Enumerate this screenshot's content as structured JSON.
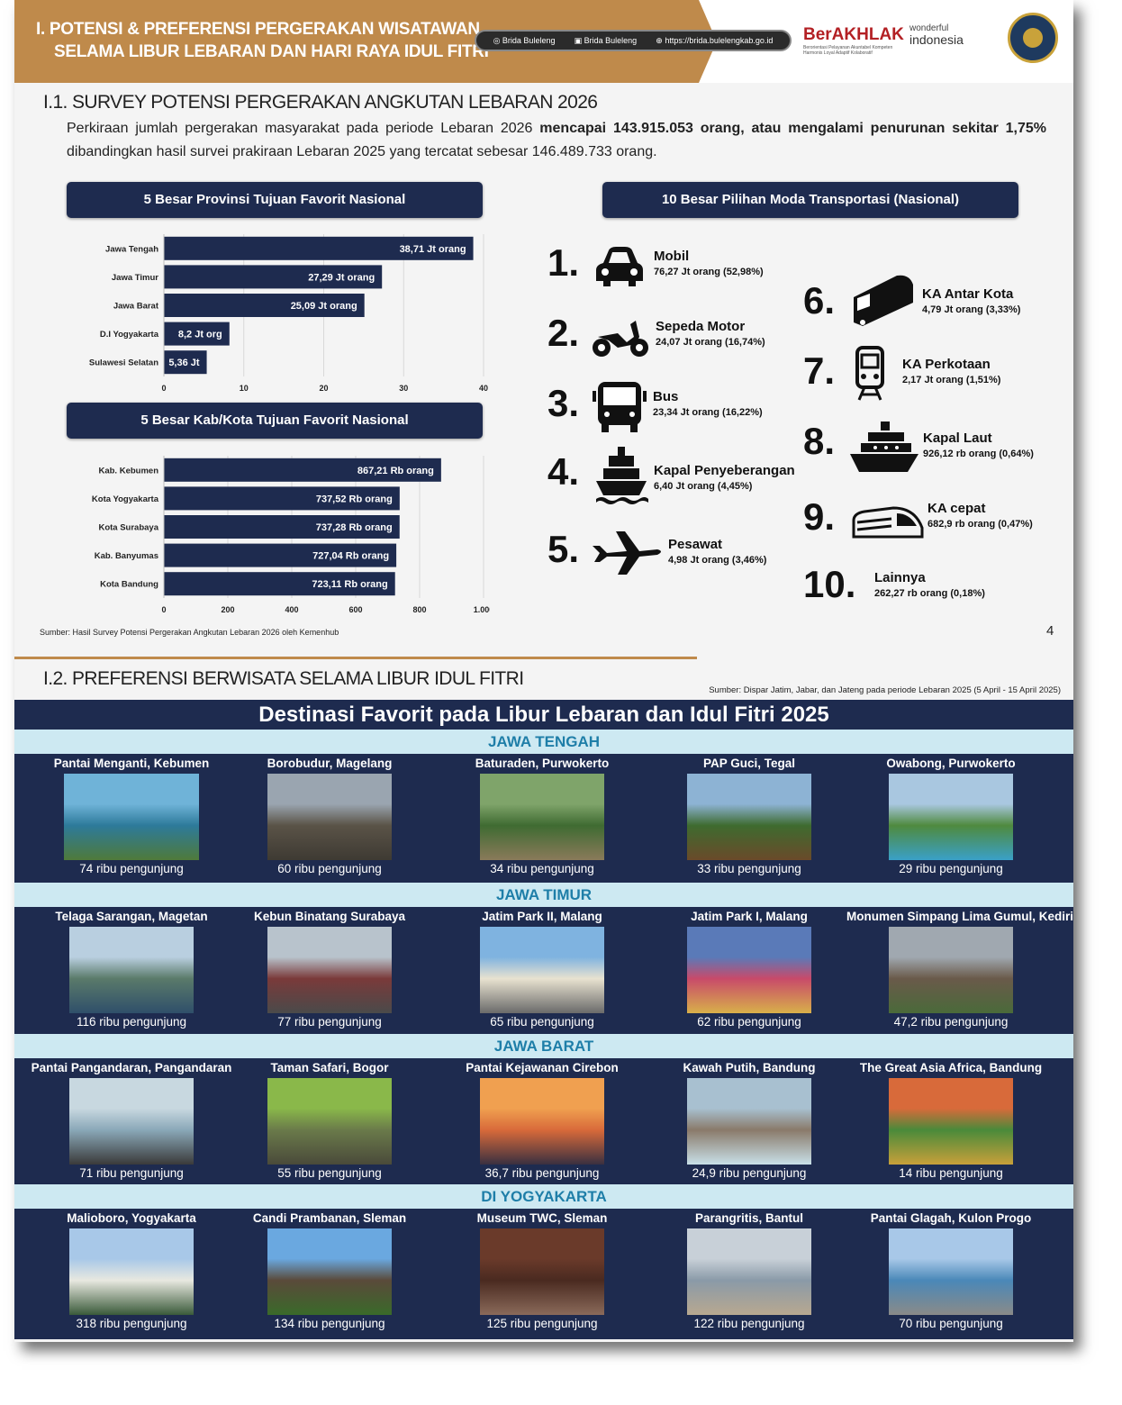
{
  "header": {
    "title_line1": "I.  POTENSI & PREFERENSI PERGERAKAN WISATAWAN",
    "title_line2": "SELAMA  LIBUR LEBARAN DAN  HARI RAYA IDUL FITRI",
    "social": [
      "Brida Buleleng",
      "Brida Buleleng",
      "https://brida.bulelengkab.go.id"
    ],
    "berakhlak": "BerAKHLAK",
    "berakhlak_tagline": "Berorientasi Pelayanan Akuntabel Kompeten Harmonis Loyal Adaptif Kolaboratif",
    "wonderful_top": "wonderful",
    "wonderful_bottom": "indonesia"
  },
  "section1": {
    "heading": "I.1. SURVEY POTENSI PERGERAKAN ANGKUTAN LEBARAN 2026",
    "intro_p1": "Perkiraan jumlah pergerakan masyarakat pada periode Lebaran 2026 ",
    "intro_b1": "mencapai 143.915.053 orang, atau mengalami penurunan sekitar 1,75%",
    "intro_p2": " dibandingkan hasil survei prakiraan Lebaran 2025 yang tercatat sebesar 146.489.733 orang.",
    "prov_title": "5 Besar Provinsi Tujuan Favorit Nasional",
    "kab_title": "5 Besar Kab/Kota Tujuan Favorit Nasional",
    "moda_title": "10 Besar Pilihan Moda Transportasi (Nasional)",
    "source": "Sumber: Hasil Survey Potensi Pergerakan Angkutan Lebaran 2026 oleh Kemenhub",
    "page": "4"
  },
  "chart_data": [
    {
      "type": "bar",
      "orientation": "horizontal",
      "title": "5 Besar Provinsi Tujuan Favorit Nasional",
      "categories": [
        "Jawa Tengah",
        "Jawa Timur",
        "Jawa Barat",
        "D.I Yogyakarta",
        "Sulawesi Selatan"
      ],
      "values": [
        38.71,
        27.29,
        25.09,
        8.2,
        5.36
      ],
      "labels": [
        "38,71 Jt orang",
        "27,29 Jt orang",
        "25,09 Jt orang",
        "8,2 Jt org",
        "5,36 Jt"
      ],
      "xlim": [
        0,
        40
      ],
      "xticks": [
        "0",
        "10",
        "20",
        "30",
        "40"
      ],
      "color": "#1e2b4f",
      "grid": true
    },
    {
      "type": "bar",
      "orientation": "horizontal",
      "title": "5 Besar Kab/Kota Tujuan Favorit Nasional",
      "categories": [
        "Kab. Kebumen",
        "Kota Yogyakarta",
        "Kota Surabaya",
        "Kab. Banyumas",
        "Kota Bandung"
      ],
      "values": [
        867.21,
        737.52,
        737.28,
        727.04,
        723.11
      ],
      "labels": [
        "867,21 Rb orang",
        "737,52 Rb orang",
        "737,28 Rb orang",
        "727,04 Rb orang",
        "723,11 Rb orang"
      ],
      "xlim": [
        0,
        1000
      ],
      "xticks": [
        "0",
        "200",
        "400",
        "600",
        "800",
        "1.000"
      ],
      "color": "#1e2b4f",
      "grid": true
    }
  ],
  "moda": [
    {
      "num": "1.",
      "name": "Mobil",
      "value": "76,27 Jt orang (52,98%)",
      "icon": "car-icon"
    },
    {
      "num": "2.",
      "name": "Sepeda Motor",
      "value": "24,07 Jt orang (16,74%)",
      "icon": "motorcycle-icon"
    },
    {
      "num": "3.",
      "name": "Bus",
      "value": "23,34 Jt orang (16,22%)",
      "icon": "bus-icon"
    },
    {
      "num": "4.",
      "name": "Kapal Penyeberangan",
      "value": "6,40 Jt orang (4,45%)",
      "icon": "ferry-icon"
    },
    {
      "num": "5.",
      "name": "Pesawat",
      "value": "4,98 Jt orang (3,46%)",
      "icon": "airplane-icon"
    },
    {
      "num": "6.",
      "name": "KA Antar Kota",
      "value": "4,79 Jt orang (3,33%)",
      "icon": "train-icon"
    },
    {
      "num": "7.",
      "name": "KA Perkotaan",
      "value": "2,17 Jt orang (1,51%)",
      "icon": "commuter-train-icon"
    },
    {
      "num": "8.",
      "name": "Kapal Laut",
      "value": "926,12 rb orang (0,64%)",
      "icon": "ship-icon"
    },
    {
      "num": "9.",
      "name": "KA cepat",
      "value": "682,9 rb orang (0,47%)",
      "icon": "high-speed-train-icon"
    },
    {
      "num": "10.",
      "name": "Lainnya",
      "value": "262,27 rb orang (0,18%)",
      "icon": ""
    }
  ],
  "section2": {
    "heading": "I.2. PREFERENSI BERWISATA SELAMA LIBUR IDUL FITRI",
    "source": "Sumber: Dispar Jatim, Jabar, dan Jateng pada periode Lebaran 2025 (5 April - 15 April 2025)",
    "title": "Destinasi Favorit pada Libur Lebaran dan Idul Fitri 2025",
    "regions": [
      {
        "name": "JAWA TENGAH",
        "items": [
          {
            "name": "Pantai Menganti, Kebumen",
            "visitors": "74 ribu pengunjung",
            "colors": [
              "#6fb3d8",
              "#2d7a9a",
              "#4f7a3a"
            ]
          },
          {
            "name": "Borobudur, Magelang",
            "visitors": "60  ribu pengunjung",
            "colors": [
              "#9aa5b0",
              "#5a5347",
              "#3e3a33"
            ]
          },
          {
            "name": "Baturaden, Purwokerto",
            "visitors": "34 ribu pengunjung",
            "colors": [
              "#7fa46a",
              "#3f6b32",
              "#8a7a5a"
            ]
          },
          {
            "name": "PAP Guci, Tegal",
            "visitors": "33 ribu pengunjung",
            "colors": [
              "#8db3d4",
              "#3e6b2f",
              "#6a4a2a"
            ]
          },
          {
            "name": "Owabong, Purwokerto",
            "visitors": "29 ribu pengunjung",
            "colors": [
              "#a9c7e0",
              "#4f8a3e",
              "#3aa0c8"
            ]
          }
        ]
      },
      {
        "name": "JAWA TIMUR",
        "items": [
          {
            "name": "Telaga Sarangan, Magetan",
            "visitors": "116 ribu pengunjung",
            "colors": [
              "#b9cfe0",
              "#5a7a6a",
              "#2f4f6a"
            ]
          },
          {
            "name": "Kebun Binatang Surabaya",
            "visitors": "77 ribu pengunjung",
            "colors": [
              "#b8c3cc",
              "#7a3a3a",
              "#4a4a4a"
            ]
          },
          {
            "name": "Jatim Park II, Malang",
            "visitors": "65 ribu pengunjung",
            "colors": [
              "#7fb3e0",
              "#e8e2d0",
              "#6a6a6a"
            ]
          },
          {
            "name": "Jatim Park I, Malang",
            "visitors": "62 ribu pengunjung",
            "colors": [
              "#5a7ab8",
              "#c84a6a",
              "#d8b04a"
            ]
          },
          {
            "name": "Monumen Simpang Lima Gumul, Kediri",
            "visitors": "47,2 ribu pengunjung",
            "colors": [
              "#a0a8b0",
              "#6a5a4a",
              "#4a6a3a"
            ]
          }
        ]
      },
      {
        "name": "JAWA BARAT",
        "items": [
          {
            "name": "Pantai Pangandaran, Pangandaran",
            "visitors": "71 ribu pengunjung",
            "colors": [
              "#c8d8e0",
              "#8aa8b8",
              "#3a3a3a"
            ]
          },
          {
            "name": "Taman Safari, Bogor",
            "visitors": "55 ribu pengunjung",
            "colors": [
              "#8ab84a",
              "#6a7a4a",
              "#4a4a3a"
            ]
          },
          {
            "name": "Pantai Kejawanan Cirebon",
            "visitors": "36,7 ribu pengunjung",
            "colors": [
              "#f0a050",
              "#d86a3a",
              "#3a3040"
            ]
          },
          {
            "name": "Kawah Putih, Bandung",
            "visitors": "24,9 ribu pengunjung",
            "colors": [
              "#a8c0d0",
              "#8a7a6a",
              "#c8e0e8"
            ]
          },
          {
            "name": "The Great Asia Africa, Bandung",
            "visitors": "14 ribu pengunjung",
            "colors": [
              "#d86a3a",
              "#4a8a3a",
              "#c8a03a"
            ]
          }
        ]
      },
      {
        "name": "DI YOGYAKARTA",
        "items": [
          {
            "name": "Malioboro, Yogyakarta",
            "visitors": "318 ribu pengunjung",
            "colors": [
              "#a8c8e8",
              "#e8e8e0",
              "#3a5a3a"
            ]
          },
          {
            "name": "Candi Prambanan, Sleman",
            "visitors": "134 ribu pengunjung",
            "colors": [
              "#6aa8e0",
              "#5a4a3a",
              "#3a6a2a"
            ]
          },
          {
            "name": "Museum TWC, Sleman",
            "visitors": "125 ribu pengunjung",
            "colors": [
              "#6a3a2a",
              "#4a2a20",
              "#8a6a5a"
            ]
          },
          {
            "name": "Parangritis, Bantul",
            "visitors": "122 ribu pengunjung",
            "colors": [
              "#c8d0d8",
              "#8a9aa8",
              "#b8a890"
            ]
          },
          {
            "name": "Pantai Glagah, Kulon Progo",
            "visitors": "70 ribu pengunjung",
            "colors": [
              "#a8c8e8",
              "#4a88b8",
              "#8a8a88"
            ]
          }
        ]
      }
    ]
  }
}
